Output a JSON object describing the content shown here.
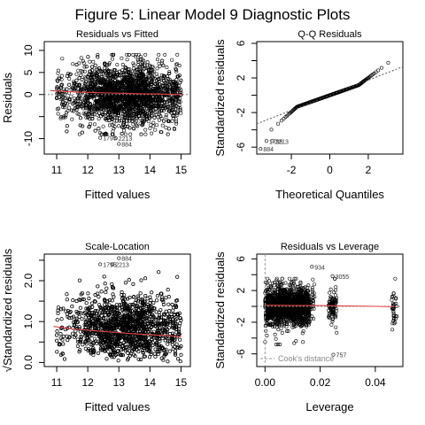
{
  "figure": {
    "title": "Figure 5: Linear Model 9 Diagnostic Plots"
  },
  "chart_data": [
    {
      "type": "scatter",
      "title": "Residuals vs Fitted",
      "xlabel": "Fitted values",
      "ylabel": "Residuals",
      "xlim": [
        10.6,
        15.3
      ],
      "ylim": [
        -13.5,
        12
      ],
      "xticks": [
        11,
        12,
        13,
        14,
        15
      ],
      "yticks": [
        -10,
        -5,
        0,
        5,
        10
      ],
      "ytick_labels": [
        "-10",
        "",
        "0",
        "5",
        "10"
      ],
      "reference_line": {
        "y": 0,
        "style": "dotted",
        "color": "#888888"
      },
      "smooth_line": {
        "color": "#e04040",
        "x": [
          10.8,
          11.5,
          12.5,
          13.5,
          14.5,
          15.0
        ],
        "y": [
          0.9,
          0.6,
          0.4,
          0.2,
          0.1,
          0.0
        ]
      },
      "labeled_points": [
        {
          "label": "1795",
          "x": 12.4,
          "y": -9.8
        },
        {
          "label": "2213",
          "x": 12.9,
          "y": -9.9
        },
        {
          "label": "884",
          "x": 13.0,
          "y": -11.2
        }
      ],
      "point_cloud": {
        "n": 2600,
        "x_center": 13.2,
        "x_range": [
          11.0,
          15.0
        ],
        "residual_sd": 3.0
      }
    },
    {
      "type": "scatter",
      "title": "Q-Q Residuals",
      "xlabel": "Theoretical Quantiles",
      "ylabel": "Standardized residuals",
      "xlim": [
        -3.8,
        3.8
      ],
      "ylim": [
        -6.8,
        6.2
      ],
      "xticks": [
        -2,
        0,
        2
      ],
      "yticks": [
        -6,
        -4,
        -2,
        0,
        2,
        4,
        6
      ],
      "ytick_labels": [
        "-6",
        "",
        "-2",
        "",
        "2",
        "",
        "6"
      ],
      "reference_line": {
        "style": "dotted",
        "x": [
          -3.8,
          3.8
        ],
        "y": [
          -3.3,
          3.3
        ]
      },
      "labeled_points": [
        {
          "label": "884",
          "x": -3.6,
          "y": -6.2
        },
        {
          "label": "1795",
          "x": -3.3,
          "y": -5.3
        },
        {
          "label": "2213",
          "x": -3.0,
          "y": -5.3
        }
      ],
      "point_cloud": {
        "n": 420,
        "x_range": [
          -3.6,
          3.6
        ]
      }
    },
    {
      "type": "scatter",
      "title": "Scale-Location",
      "xlabel": "Fitted values",
      "ylabel": "√Standardized residuals",
      "xlim": [
        10.6,
        15.3
      ],
      "ylim": [
        -0.1,
        2.65
      ],
      "xticks": [
        11,
        12,
        13,
        14,
        15
      ],
      "yticks": [
        0.0,
        0.5,
        1.0,
        1.5,
        2.0,
        2.5
      ],
      "ytick_labels": [
        "0.0",
        "",
        "1.0",
        "",
        "2.0",
        ""
      ],
      "smooth_line": {
        "color": "#e04040",
        "x": [
          10.9,
          11.5,
          12.5,
          13.5,
          14.5,
          15.0
        ],
        "y": [
          0.88,
          0.82,
          0.76,
          0.7,
          0.66,
          0.63
        ]
      },
      "labeled_points": [
        {
          "label": "884",
          "x": 13.0,
          "y": 2.55
        },
        {
          "label": "1795",
          "x": 12.4,
          "y": 2.4
        },
        {
          "label": "2213",
          "x": 12.8,
          "y": 2.4
        }
      ],
      "point_cloud": {
        "n": 2600,
        "x_center": 13.2,
        "x_range": [
          11.0,
          15.0
        ]
      }
    },
    {
      "type": "scatter",
      "title": "Residuals vs Leverage",
      "xlabel": "Leverage",
      "ylabel": "Standardized residuals",
      "xlim": [
        -0.003,
        0.05
      ],
      "ylim": [
        -7.6,
        6.6
      ],
      "xticks": [
        0.0,
        0.02,
        0.04
      ],
      "xtick_labels": [
        "0.00",
        "0.02",
        "0.04"
      ],
      "yticks": [
        -6,
        -4,
        -2,
        0,
        2,
        4,
        6
      ],
      "ytick_labels": [
        "-6",
        "",
        "-2",
        "",
        "2",
        "",
        "6"
      ],
      "reference_line": {
        "y": 0,
        "style": "dotted"
      },
      "smooth_line": {
        "color": "#e04040",
        "x": [
          0.0,
          0.01,
          0.02,
          0.03,
          0.04,
          0.047
        ],
        "y": [
          0.15,
          0.1,
          0.1,
          0.05,
          0.0,
          -0.05
        ]
      },
      "cooks_line": {
        "x": 0.0,
        "style": "dashed",
        "color": "#999999"
      },
      "legend": {
        "text": "Cook's distance",
        "position": "bottom-left"
      },
      "labeled_points": [
        {
          "label": "934",
          "x": 0.017,
          "y": 5.0
        },
        {
          "label": "3055",
          "x": 0.0245,
          "y": 3.8
        },
        {
          "label": "757",
          "x": 0.0248,
          "y": -6.1
        }
      ],
      "point_cloud": {
        "clusters": [
          {
            "x_range": [
              0.0,
              0.016
            ],
            "n": 1500
          },
          {
            "x_range": [
              0.016,
              0.018
            ],
            "n": 40
          },
          {
            "x_range": [
              0.023,
              0.026
            ],
            "n": 90
          },
          {
            "x_range": [
              0.046,
              0.048
            ],
            "n": 35
          }
        ]
      }
    }
  ]
}
